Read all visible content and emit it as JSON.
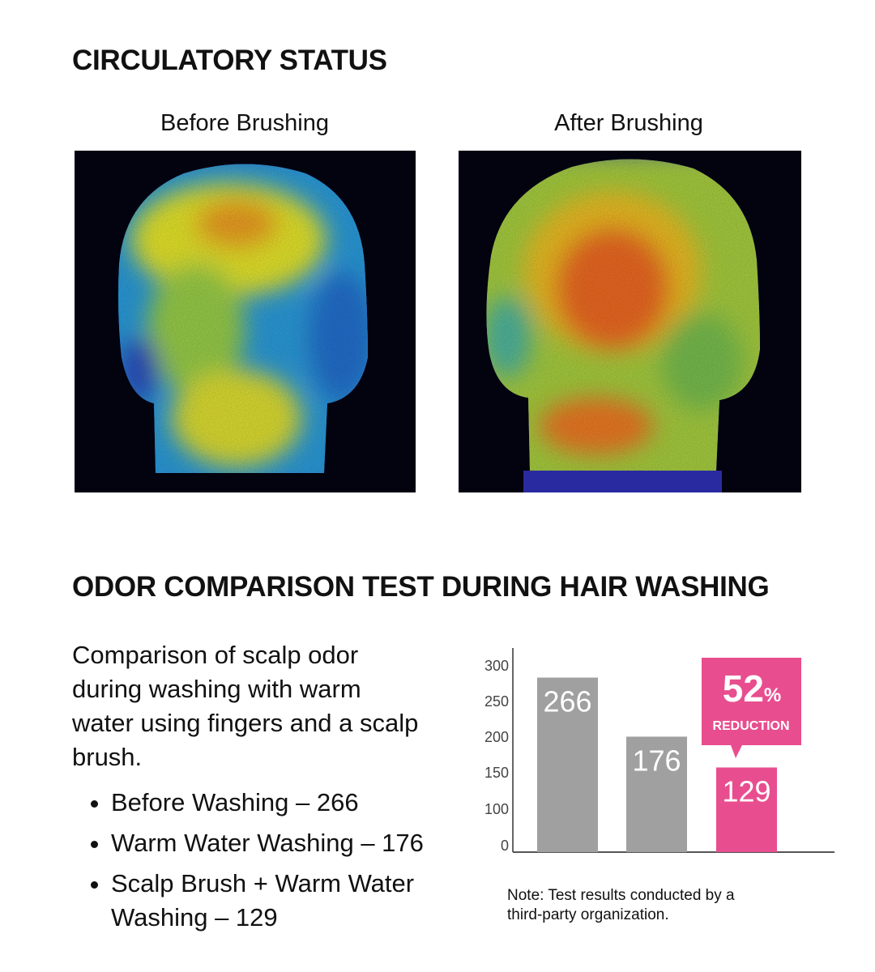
{
  "circulatory": {
    "title": "CIRCULATORY STATUS",
    "before_label": "Before Brushing",
    "after_label": "After Brushing"
  },
  "odor": {
    "title": "ODOR COMPARISON TEST DURING HAIR WASHING",
    "description": "Comparison of scalp odor during washing with warm water using fingers and a scalp brush.",
    "items": [
      "Before Washing – 266",
      "Warm Water Washing – 176",
      "Scalp Brush + Warm Water Washing – 129"
    ],
    "note": "Note: Test results conducted by a third-party organization."
  },
  "chart_data": {
    "type": "bar",
    "categories": [
      "Before Washing",
      "Warm Water Washing",
      "Scalp Brush + Warm Water Washing"
    ],
    "values": [
      266,
      176,
      129
    ],
    "data_labels": [
      "266",
      "176",
      "129"
    ],
    "y_tick_labels": [
      "300",
      "250",
      "200",
      "150",
      "100",
      "0"
    ],
    "callout": {
      "value": "52",
      "unit": "%",
      "label": "REDUCTION"
    },
    "colors": {
      "bar": "#a0a0a0",
      "highlight": "#e84e8f",
      "axis": "#555555"
    },
    "grid": false
  }
}
